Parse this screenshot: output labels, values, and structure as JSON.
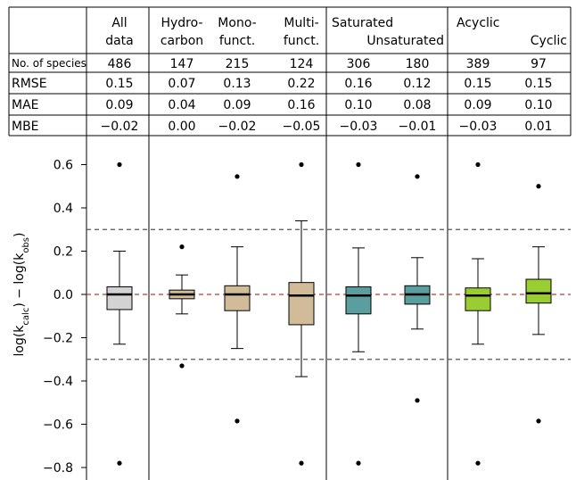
{
  "table": {
    "columns": [
      {
        "line1": "All",
        "line2": "data"
      },
      {
        "line1": "Hydro-",
        "line2": "carbon"
      },
      {
        "line1": "Mono-",
        "line2": "funct."
      },
      {
        "line1": "Multi-",
        "line2": "funct."
      },
      {
        "line1": "Saturated",
        "line2": ""
      },
      {
        "line1": "",
        "line2": "Unsaturated"
      },
      {
        "line1": "Acyclic",
        "line2": ""
      },
      {
        "line1": "",
        "line2": "Cyclic"
      }
    ],
    "rows": [
      {
        "label": "No. of species",
        "values": [
          "486",
          "147",
          "215",
          "124",
          "306",
          "180",
          "389",
          "97"
        ]
      },
      {
        "label": "RMSE",
        "values": [
          "0.15",
          "0.07",
          "0.13",
          "0.22",
          "0.16",
          "0.12",
          "0.15",
          "0.15"
        ]
      },
      {
        "label": "MAE",
        "values": [
          "0.09",
          "0.04",
          "0.09",
          "0.16",
          "0.10",
          "0.08",
          "0.09",
          "0.10"
        ]
      },
      {
        "label": "MBE",
        "values": [
          "−0.02",
          "0.00",
          "−0.02",
          "−0.05",
          "−0.03",
          "−0.01",
          "−0.03",
          "0.01"
        ]
      }
    ]
  },
  "chart_data": {
    "type": "box",
    "ylabel": "log(k_calc) − log(k_obs)",
    "ylim": [
      -0.85,
      0.7
    ],
    "yticks": [
      0.6,
      0.4,
      0.2,
      0.0,
      -0.2,
      -0.4,
      -0.6,
      -0.8
    ],
    "ytick_labels": [
      "0.6",
      "0.4",
      "0.2",
      "0.0",
      "−0.2",
      "−0.4",
      "−0.6",
      "−0.8"
    ],
    "reference_lines": [
      {
        "y": 0.0,
        "color": "#c0392b",
        "style": "dashed"
      },
      {
        "y": 0.3,
        "color": "#555555",
        "style": "dashed"
      },
      {
        "y": -0.3,
        "color": "#555555",
        "style": "dashed"
      }
    ],
    "boxes": [
      {
        "group": "All data",
        "color": "#d3d3d3",
        "q1": -0.07,
        "median": 0.0,
        "q3": 0.035,
        "whisker_low": -0.23,
        "whisker_high": 0.2,
        "outliers": [
          0.6,
          -0.78
        ]
      },
      {
        "group": "Hydrocarbon",
        "color": "#d2bb98",
        "q1": -0.02,
        "median": 0.0,
        "q3": 0.02,
        "whisker_low": -0.09,
        "whisker_high": 0.09,
        "outliers": [
          0.22,
          -0.33
        ]
      },
      {
        "group": "Mono-funct.",
        "color": "#d2bb98",
        "q1": -0.075,
        "median": 0.0,
        "q3": 0.04,
        "whisker_low": -0.25,
        "whisker_high": 0.22,
        "outliers": [
          0.545,
          -0.585
        ]
      },
      {
        "group": "Multi-funct.",
        "color": "#d2bb98",
        "q1": -0.14,
        "median": -0.005,
        "q3": 0.055,
        "whisker_low": -0.38,
        "whisker_high": 0.34,
        "outliers": [
          0.6,
          -0.78
        ]
      },
      {
        "group": "Saturated",
        "color": "#5b9ea0",
        "q1": -0.09,
        "median": -0.005,
        "q3": 0.035,
        "whisker_low": -0.265,
        "whisker_high": 0.215,
        "outliers": [
          0.6,
          -0.78
        ]
      },
      {
        "group": "Unsaturated",
        "color": "#5b9ea0",
        "q1": -0.045,
        "median": 0.0,
        "q3": 0.04,
        "whisker_low": -0.16,
        "whisker_high": 0.17,
        "outliers": [
          0.545,
          -0.49
        ]
      },
      {
        "group": "Acyclic",
        "color": "#9acd32",
        "q1": -0.075,
        "median": -0.005,
        "q3": 0.03,
        "whisker_low": -0.23,
        "whisker_high": 0.165,
        "outliers": [
          0.6,
          -0.78
        ]
      },
      {
        "group": "Cyclic",
        "color": "#9acd32",
        "q1": -0.04,
        "median": 0.005,
        "q3": 0.07,
        "whisker_low": -0.185,
        "whisker_high": 0.22,
        "outliers": [
          0.5,
          -0.585
        ]
      }
    ]
  }
}
